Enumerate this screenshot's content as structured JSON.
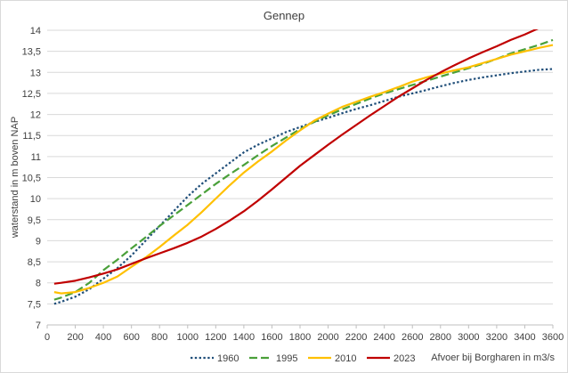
{
  "chart_data": {
    "type": "line",
    "title": "Gennep",
    "xlabel": "Afvoer bij Borgharen in m3/s",
    "ylabel": "waterstand in m boven NAP",
    "xlim": [
      0,
      3600
    ],
    "ylim": [
      7,
      14
    ],
    "x_ticks": [
      "0",
      "200",
      "400",
      "600",
      "800",
      "1000",
      "1200",
      "1400",
      "1600",
      "1800",
      "2000",
      "2200",
      "2400",
      "2600",
      "2800",
      "3000",
      "3200",
      "3400",
      "3600"
    ],
    "y_ticks": [
      "7",
      "7,5",
      "8",
      "8,5",
      "9",
      "9,5",
      "10",
      "10,5",
      "11",
      "11,5",
      "12",
      "12,5",
      "13",
      "13,5",
      "14"
    ],
    "grid": "horizontal",
    "legend_position": "bottom",
    "series": [
      {
        "name": "1960",
        "color": "#1f4e79",
        "dash": "dotted",
        "points": [
          [
            50,
            7.5
          ],
          [
            100,
            7.55
          ],
          [
            200,
            7.67
          ],
          [
            300,
            7.85
          ],
          [
            400,
            8.1
          ],
          [
            500,
            8.35
          ],
          [
            600,
            8.65
          ],
          [
            700,
            9.0
          ],
          [
            800,
            9.35
          ],
          [
            900,
            9.7
          ],
          [
            1000,
            10.05
          ],
          [
            1100,
            10.35
          ],
          [
            1200,
            10.6
          ],
          [
            1300,
            10.85
          ],
          [
            1400,
            11.1
          ],
          [
            1500,
            11.28
          ],
          [
            1600,
            11.43
          ],
          [
            1700,
            11.58
          ],
          [
            1800,
            11.7
          ],
          [
            1900,
            11.82
          ],
          [
            2000,
            11.92
          ],
          [
            2100,
            12.03
          ],
          [
            2200,
            12.13
          ],
          [
            2300,
            12.22
          ],
          [
            2400,
            12.32
          ],
          [
            2500,
            12.42
          ],
          [
            2600,
            12.5
          ],
          [
            2700,
            12.58
          ],
          [
            2800,
            12.67
          ],
          [
            2900,
            12.75
          ],
          [
            3000,
            12.82
          ],
          [
            3100,
            12.88
          ],
          [
            3200,
            12.93
          ],
          [
            3300,
            12.98
          ],
          [
            3400,
            13.02
          ],
          [
            3500,
            13.06
          ],
          [
            3600,
            13.08
          ]
        ]
      },
      {
        "name": "1995",
        "color": "#4aa03a",
        "dash": "dashed",
        "points": [
          [
            50,
            7.6
          ],
          [
            100,
            7.65
          ],
          [
            200,
            7.78
          ],
          [
            300,
            8.0
          ],
          [
            400,
            8.3
          ],
          [
            500,
            8.55
          ],
          [
            600,
            8.82
          ],
          [
            700,
            9.08
          ],
          [
            800,
            9.35
          ],
          [
            900,
            9.6
          ],
          [
            1000,
            9.85
          ],
          [
            1100,
            10.1
          ],
          [
            1200,
            10.35
          ],
          [
            1300,
            10.58
          ],
          [
            1400,
            10.8
          ],
          [
            1500,
            11.03
          ],
          [
            1600,
            11.25
          ],
          [
            1700,
            11.45
          ],
          [
            1800,
            11.65
          ],
          [
            1900,
            11.82
          ],
          [
            2000,
            11.98
          ],
          [
            2100,
            12.12
          ],
          [
            2200,
            12.25
          ],
          [
            2300,
            12.38
          ],
          [
            2400,
            12.5
          ],
          [
            2500,
            12.6
          ],
          [
            2600,
            12.7
          ],
          [
            2700,
            12.8
          ],
          [
            2800,
            12.9
          ],
          [
            2900,
            13.0
          ],
          [
            3000,
            13.1
          ],
          [
            3100,
            13.2
          ],
          [
            3200,
            13.32
          ],
          [
            3300,
            13.45
          ],
          [
            3400,
            13.55
          ],
          [
            3500,
            13.65
          ],
          [
            3600,
            13.77
          ]
        ]
      },
      {
        "name": "2010",
        "color": "#ffc000",
        "dash": "solid",
        "points": [
          [
            50,
            7.78
          ],
          [
            100,
            7.75
          ],
          [
            200,
            7.78
          ],
          [
            300,
            7.88
          ],
          [
            400,
            8.0
          ],
          [
            500,
            8.15
          ],
          [
            600,
            8.38
          ],
          [
            700,
            8.6
          ],
          [
            800,
            8.85
          ],
          [
            900,
            9.12
          ],
          [
            1000,
            9.38
          ],
          [
            1100,
            9.68
          ],
          [
            1200,
            10.0
          ],
          [
            1300,
            10.32
          ],
          [
            1400,
            10.62
          ],
          [
            1500,
            10.88
          ],
          [
            1600,
            11.12
          ],
          [
            1700,
            11.38
          ],
          [
            1800,
            11.62
          ],
          [
            1900,
            11.85
          ],
          [
            2000,
            12.02
          ],
          [
            2100,
            12.18
          ],
          [
            2200,
            12.3
          ],
          [
            2300,
            12.42
          ],
          [
            2400,
            12.53
          ],
          [
            2500,
            12.65
          ],
          [
            2600,
            12.78
          ],
          [
            2700,
            12.88
          ],
          [
            2800,
            12.97
          ],
          [
            2900,
            13.05
          ],
          [
            3000,
            13.12
          ],
          [
            3100,
            13.22
          ],
          [
            3200,
            13.32
          ],
          [
            3300,
            13.42
          ],
          [
            3400,
            13.5
          ],
          [
            3500,
            13.58
          ],
          [
            3600,
            13.65
          ]
        ]
      },
      {
        "name": "2023",
        "color": "#c00000",
        "dash": "solid",
        "points": [
          [
            50,
            7.98
          ],
          [
            100,
            8.0
          ],
          [
            200,
            8.05
          ],
          [
            300,
            8.13
          ],
          [
            400,
            8.22
          ],
          [
            500,
            8.32
          ],
          [
            600,
            8.45
          ],
          [
            700,
            8.58
          ],
          [
            800,
            8.7
          ],
          [
            900,
            8.82
          ],
          [
            1000,
            8.95
          ],
          [
            1100,
            9.1
          ],
          [
            1200,
            9.28
          ],
          [
            1300,
            9.48
          ],
          [
            1400,
            9.7
          ],
          [
            1500,
            9.95
          ],
          [
            1600,
            10.22
          ],
          [
            1700,
            10.5
          ],
          [
            1800,
            10.78
          ],
          [
            1900,
            11.03
          ],
          [
            2000,
            11.28
          ],
          [
            2100,
            11.52
          ],
          [
            2200,
            11.75
          ],
          [
            2300,
            11.98
          ],
          [
            2400,
            12.2
          ],
          [
            2500,
            12.42
          ],
          [
            2600,
            12.62
          ],
          [
            2700,
            12.82
          ],
          [
            2800,
            13.0
          ],
          [
            2900,
            13.17
          ],
          [
            3000,
            13.33
          ],
          [
            3100,
            13.48
          ],
          [
            3200,
            13.62
          ],
          [
            3300,
            13.77
          ],
          [
            3400,
            13.9
          ],
          [
            3500,
            14.05
          ],
          [
            3600,
            14.18
          ]
        ]
      }
    ]
  }
}
